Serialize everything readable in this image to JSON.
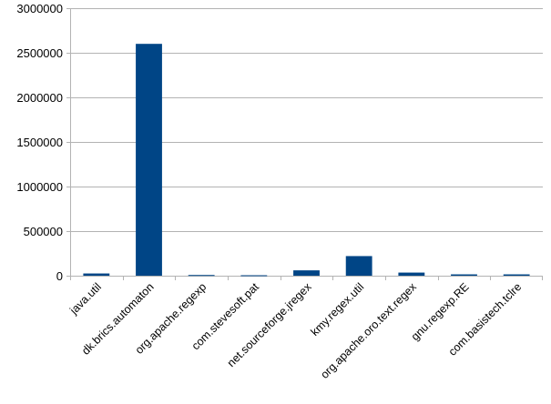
{
  "chart_data": {
    "type": "bar",
    "categories": [
      "java.util",
      "dk.brics.automaton",
      "org.apache.regexp",
      "com.stevesoft.pat",
      "net.sourceforge.jregex",
      "kmy.regex.util",
      "org.apache.oro.text.regex",
      "gnu.regexp.RE",
      "com.basistech.tclre"
    ],
    "values": [
      25000,
      2600000,
      8000,
      5000,
      60000,
      220000,
      35000,
      15000,
      15000
    ],
    "ylim": [
      0,
      3000000
    ],
    "yticks": [
      {
        "value": 0,
        "label": "0"
      },
      {
        "value": 500000,
        "label": "500000"
      },
      {
        "value": 1000000,
        "label": "1000000"
      },
      {
        "value": 1500000,
        "label": "1500000"
      },
      {
        "value": 2000000,
        "label": "2000000"
      },
      {
        "value": 2500000,
        "label": "2500000"
      },
      {
        "value": 3000000,
        "label": "3000000"
      }
    ],
    "grid": true,
    "legend": "none",
    "bar_color": "#004586",
    "grid_color": "#b3b3b3"
  }
}
